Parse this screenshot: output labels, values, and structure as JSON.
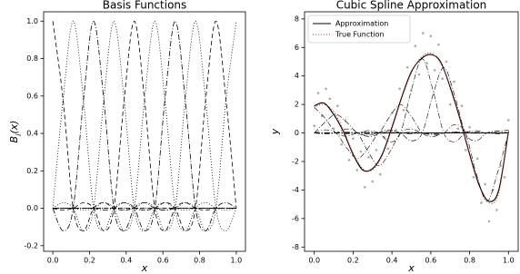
{
  "chart_data": [
    {
      "type": "line",
      "title": "Basis Functions",
      "xlabel": "x",
      "ylabel": [
        "B",
        "i",
        "(x)"
      ],
      "xlim": [
        -0.05,
        1.05
      ],
      "ylim": [
        -0.23,
        1.05
      ],
      "xticks": [
        {
          "value": 0,
          "label": "0.0"
        },
        0.2,
        0.4,
        0.6,
        0.8,
        {
          "value": 1,
          "label": "1.0"
        }
      ],
      "yticks": [
        -0.2,
        {
          "value": 0,
          "label": "0.0"
        },
        0.2,
        0.4,
        0.6,
        0.8,
        {
          "value": 1,
          "label": "1.0"
        }
      ],
      "grid": false,
      "x": [
        0,
        0.056,
        0.111,
        0.167,
        0.222,
        0.278,
        0.333,
        0.389,
        0.444,
        0.5,
        0.556,
        0.611,
        0.667,
        0.722,
        0.778,
        0.833,
        0.889,
        0.944,
        1.0
      ],
      "series": [
        {
          "color": "#000",
          "linestyle": "dashed",
          "values": [
            1,
            0.58,
            0,
            -0.12,
            0,
            0.03,
            0,
            -0.01,
            0,
            0,
            0,
            0,
            0,
            0,
            0,
            0,
            0,
            0,
            0
          ]
        },
        {
          "color": "#000",
          "linestyle": "dotted",
          "values": [
            0,
            0.58,
            1,
            0.58,
            0,
            -0.12,
            0,
            0.03,
            0,
            -0.01,
            0,
            0,
            0,
            0,
            0,
            0,
            0,
            0,
            0
          ]
        },
        {
          "color": "#000",
          "linestyle": "dashdot",
          "values": [
            0,
            -0.12,
            0,
            0.58,
            1,
            0.58,
            0,
            -0.12,
            0,
            0.03,
            0,
            -0.01,
            0,
            0,
            0,
            0,
            0,
            0,
            0
          ]
        },
        {
          "color": "#000",
          "linestyle": "dotted",
          "values": [
            0,
            0.03,
            0,
            -0.12,
            0,
            0.58,
            1,
            0.58,
            0,
            -0.12,
            0,
            0.03,
            0,
            -0.01,
            0,
            0,
            0,
            0,
            0
          ]
        },
        {
          "color": "#000",
          "linestyle": "dashed",
          "values": [
            0,
            -0.01,
            0,
            0.03,
            0,
            -0.12,
            0,
            0.58,
            1,
            0.58,
            0,
            -0.12,
            0,
            0.03,
            0,
            -0.01,
            0,
            0,
            0
          ]
        },
        {
          "color": "#000",
          "linestyle": "dotted",
          "values": [
            0,
            0,
            0,
            -0.01,
            0,
            0.03,
            0,
            -0.12,
            0,
            0.58,
            1,
            0.58,
            0,
            -0.12,
            0,
            0.03,
            0,
            -0.01,
            0
          ]
        },
        {
          "color": "#000",
          "linestyle": "dashdot",
          "values": [
            0,
            0,
            0,
            0,
            0,
            -0.01,
            0,
            0.03,
            0,
            -0.12,
            0,
            0.58,
            1,
            0.58,
            0,
            -0.12,
            0,
            0.03,
            0
          ]
        },
        {
          "color": "#000",
          "linestyle": "dotted",
          "values": [
            0,
            0,
            0,
            0,
            0,
            0,
            0,
            -0.01,
            0,
            0.03,
            0,
            -0.12,
            0,
            0.58,
            1,
            0.58,
            0,
            -0.12,
            0
          ]
        },
        {
          "color": "#000",
          "linestyle": "dashed",
          "values": [
            0,
            0,
            0,
            0,
            0,
            0,
            0,
            0,
            0,
            -0.01,
            0,
            0.03,
            0,
            -0.12,
            0,
            0.58,
            1,
            0.58,
            0
          ]
        },
        {
          "color": "#000",
          "linestyle": "dotted",
          "values": [
            0,
            0,
            0,
            0,
            0,
            0,
            0,
            0,
            0,
            0,
            0,
            -0.01,
            0,
            0.03,
            0,
            -0.12,
            0,
            0.58,
            1
          ]
        }
      ]
    },
    {
      "type": "line",
      "title": "Cubic Spline Approximation",
      "xlabel": "x",
      "ylabel": [
        "y"
      ],
      "xlim": [
        -0.05,
        1.05
      ],
      "ylim": [
        -8.3,
        8.5
      ],
      "xticks": [
        {
          "value": 0,
          "label": "0.0"
        },
        0.2,
        0.4,
        0.6,
        0.8,
        {
          "value": 1,
          "label": "1.0"
        }
      ],
      "yticks": [
        -8,
        -6,
        -4,
        -2,
        0,
        2,
        4,
        6,
        8
      ],
      "grid": false,
      "legend": "upper left",
      "scatter": {
        "color": "#aaaaaa",
        "x": [
          0,
          0.02,
          0.04,
          0.06,
          0.08,
          0.1,
          0.12,
          0.14,
          0.16,
          0.18,
          0.2,
          0.22,
          0.24,
          0.26,
          0.28,
          0.3,
          0.32,
          0.34,
          0.36,
          0.38,
          0.4,
          0.42,
          0.44,
          0.46,
          0.48,
          0.5,
          0.52,
          0.54,
          0.56,
          0.58,
          0.6,
          0.62,
          0.64,
          0.66,
          0.68,
          0.7,
          0.72,
          0.74,
          0.76,
          0.78,
          0.8,
          0.82,
          0.84,
          0.86,
          0.88,
          0.9,
          0.92,
          0.94,
          0.96,
          0.98,
          1.0
        ],
        "y": [
          0.5,
          2.8,
          1.2,
          3.1,
          2.4,
          0.3,
          1.9,
          -0.8,
          0.9,
          -1.9,
          -0.4,
          -2.6,
          -1.3,
          -3.8,
          -1.7,
          -3.4,
          -1.2,
          -2.9,
          -0.3,
          -1.1,
          1.4,
          0.2,
          3.1,
          1.6,
          4.6,
          3.0,
          6.1,
          4.1,
          7.0,
          4.9,
          6.8,
          4.4,
          6.2,
          3.8,
          5.0,
          2.0,
          3.6,
          0.3,
          1.9,
          -1.2,
          0.4,
          -3.1,
          -1.8,
          -4.9,
          -3.6,
          -6.2,
          -4.0,
          -5.4,
          -2.3,
          -3.1,
          0.9
        ]
      },
      "basis_series": {
        "color": "#000",
        "linestyle": "dashdot",
        "x": [
          0,
          0.056,
          0.111,
          0.167,
          0.222,
          0.278,
          0.333,
          0.389,
          0.444,
          0.5,
          0.556,
          0.611,
          0.667,
          0.722,
          0.778,
          0.833,
          0.889,
          0.944,
          1.0
        ],
        "values": [
          [
            1.8,
            1.04,
            0,
            -0.22,
            0,
            0.05,
            0,
            -0.02,
            0,
            0,
            0,
            0,
            0,
            0,
            0,
            0,
            0,
            0,
            0
          ],
          [
            0,
            0.75,
            1.3,
            0.75,
            0,
            -0.16,
            0,
            0.04,
            0,
            -0.01,
            0,
            0,
            0,
            0,
            0,
            0,
            0,
            0,
            0
          ],
          [
            0,
            0.22,
            0,
            -1.04,
            -1.8,
            -1.04,
            0,
            0.22,
            0,
            -0.05,
            0,
            0.02,
            0,
            0,
            0,
            0,
            0,
            0,
            0
          ],
          [
            0,
            -0.07,
            0,
            0.28,
            0,
            -1.33,
            -2.3,
            -1.33,
            0,
            0.28,
            0,
            -0.07,
            0,
            0.02,
            0,
            0,
            0,
            0,
            0
          ],
          [
            0,
            -0.02,
            0,
            0.06,
            0,
            -0.24,
            0,
            1.16,
            2,
            1.16,
            0,
            -0.24,
            0,
            0.06,
            0,
            -0.02,
            0,
            0,
            0
          ],
          [
            0,
            0,
            0,
            -0.05,
            0,
            0.16,
            0,
            -0.62,
            0,
            3.02,
            5.2,
            3.02,
            0,
            -0.62,
            0,
            0.16,
            0,
            -0.05,
            0
          ],
          [
            0,
            0,
            0,
            0,
            0,
            -0.05,
            0,
            0.14,
            0,
            -0.55,
            0,
            2.67,
            4.6,
            2.67,
            0,
            -0.55,
            0,
            0.14,
            0
          ],
          [
            0,
            0,
            0,
            0,
            0,
            0,
            0,
            0,
            0,
            0,
            0,
            -0.01,
            0,
            0.06,
            0.1,
            0.06,
            0,
            -0.01,
            0
          ],
          [
            0,
            0,
            0,
            0,
            0,
            0,
            0,
            0,
            0,
            0.05,
            0,
            -0.14,
            0,
            0.58,
            0,
            -2.78,
            -4.8,
            -2.78,
            0
          ],
          [
            0,
            0,
            0,
            0,
            0,
            0,
            0,
            0,
            0,
            0,
            0,
            0,
            0,
            0,
            0,
            -0.02,
            0,
            0.12,
            0.2
          ]
        ]
      },
      "x": [
        0,
        0.05,
        0.1,
        0.15,
        0.2,
        0.25,
        0.3,
        0.35,
        0.4,
        0.45,
        0.5,
        0.55,
        0.6,
        0.65,
        0.7,
        0.75,
        0.8,
        0.85,
        0.9,
        0.95,
        1.0
      ],
      "series": [
        {
          "name": "Approximation",
          "color": "#000000",
          "linestyle": "solid",
          "values": [
            1.9,
            2.1,
            1.3,
            0.1,
            -1.5,
            -2.6,
            -2.5,
            -1.5,
            0.4,
            2.5,
            4.3,
            5.2,
            5.5,
            5.0,
            3.2,
            1.0,
            -1.5,
            -3.7,
            -4.8,
            -4.0,
            0.1
          ]
        },
        {
          "name": "True Function",
          "color": "#d62728",
          "linestyle": "dotted",
          "values": [
            1.8,
            2.0,
            1.5,
            0.2,
            -1.4,
            -2.5,
            -2.6,
            -1.6,
            0.3,
            2.4,
            4.2,
            5.3,
            5.6,
            4.9,
            3.3,
            1.1,
            -1.4,
            -3.6,
            -4.9,
            -4.2,
            0.2
          ]
        }
      ]
    }
  ]
}
